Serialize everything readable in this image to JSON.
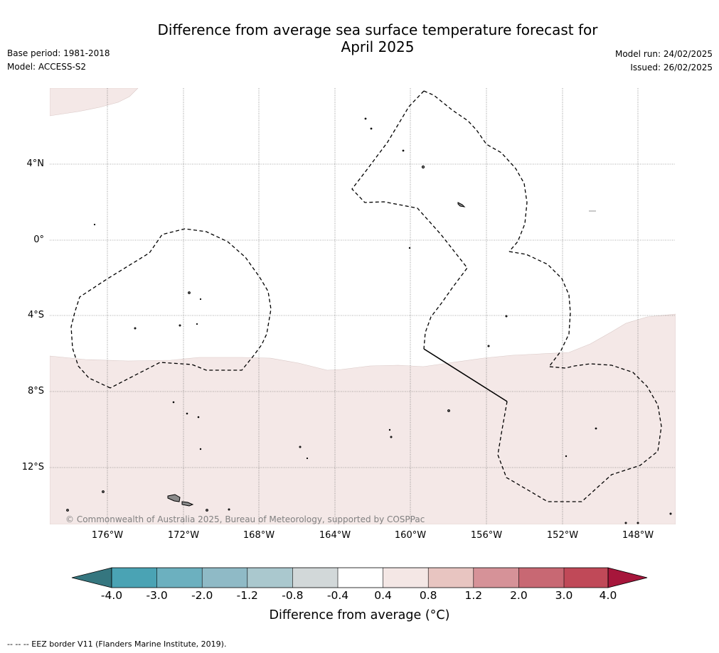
{
  "header": {
    "title_line1": "Difference from average sea surface temperature forecast for",
    "title_line2": "April 2025",
    "base_period": "Base period: 1981-2018",
    "model": "Model: ACCESS-S2",
    "model_run": "Model run: 24/02/2025",
    "issued": "Issued: 26/02/2025"
  },
  "map": {
    "latitude_labels": [
      "4°N",
      "0°",
      "4°S",
      "8°S",
      "12°S"
    ],
    "longitude_labels": [
      "176°W",
      "172°W",
      "168°W",
      "164°W",
      "160°W",
      "156°W",
      "152°W",
      "148°W"
    ],
    "copyright": "© Commonwealth of Australia 2025, Bureau of Meteorology, supported by COSPPac",
    "background_color": "#ffffff",
    "anomaly_fill_color": "#f4e8e7",
    "eez_border_style": "dashed",
    "grid": true
  },
  "colorbar": {
    "labels": [
      "-4.0",
      "-3.0",
      "-2.0",
      "-1.2",
      "-0.8",
      "-0.4",
      "0.4",
      "0.8",
      "1.2",
      "2.0",
      "3.0",
      "4.0"
    ],
    "colors": [
      "#35767f",
      "#4aa3b4",
      "#6cb0bf",
      "#8fbac6",
      "#aac8ce",
      "#d2d8d9",
      "#ffffff",
      "#f4e7e5",
      "#e8c5c1",
      "#d69298",
      "#c86873",
      "#c04958",
      "#a6163b"
    ],
    "title": "Difference from average (°C)"
  },
  "footnote": "--  --  -- EEZ border V11 (Flanders Marine Institute, 2019)."
}
